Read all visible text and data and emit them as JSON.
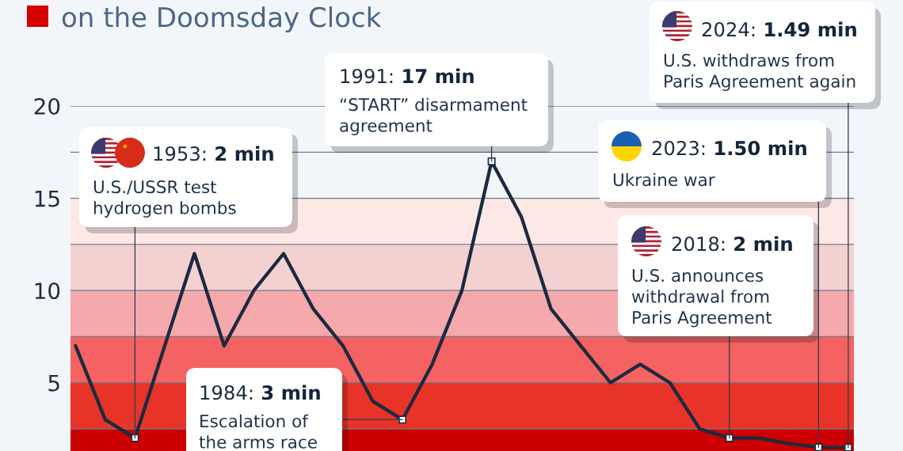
{
  "chart_data": {
    "type": "line",
    "title": "on the Doomsday Clock",
    "categories": [
      null,
      null,
      null,
      null,
      null,
      null,
      null,
      null,
      null,
      null,
      null,
      null,
      null,
      null,
      null,
      null,
      null,
      null,
      null,
      null,
      null,
      null,
      null,
      null,
      null,
      null,
      null
    ],
    "series": [
      {
        "color": "#1b2a3f",
        "values": [
          7,
          3,
          2,
          7,
          12,
          7,
          10,
          12,
          9,
          7,
          4,
          3,
          6,
          10,
          17,
          14,
          9,
          7,
          5,
          6,
          5,
          2.5,
          2,
          2,
          1.7,
          1.5,
          1.49
        ]
      }
    ],
    "ylim": [
      1.3,
      20
    ],
    "yticks": [
      {
        "value": 2.5,
        "label": null
      },
      5,
      {
        "value": 7.5,
        "label": null
      },
      10,
      {
        "value": 12.5,
        "label": null
      },
      15,
      {
        "value": 17.5,
        "label": null
      },
      20
    ],
    "grid": "y",
    "tick_labels": "y",
    "bands": [
      {
        "axis": "y",
        "from": 0,
        "to": 2.5,
        "color": "#cc0000"
      },
      {
        "axis": "y",
        "from": 2.5,
        "to": 5,
        "color": "#e83428"
      },
      {
        "axis": "y",
        "from": 5,
        "to": 7.5,
        "color": "#f46262"
      },
      {
        "axis": "y",
        "from": 7.5,
        "to": 10,
        "color": "#f5a9ac"
      },
      {
        "axis": "y",
        "from": 10,
        "to": 12.5,
        "color": "#f4d1d1"
      },
      {
        "axis": "y",
        "from": 12.5,
        "to": 15,
        "color": "#fde8e6"
      }
    ],
    "annotations": [
      "1953: 2 min\nU.S./USSR test\nhydrogen bombs",
      "1984: 3 min\nEscalation of\nthe arms race",
      "1991: 17 min\n“START” disarmament\nagreement",
      "2018: 2 min\nU.S. announces\nwithdrawal from\nParis Agreement",
      "2023: 1.50 min\nUkraine war",
      "2024: 1.49 min\nU.S. withdraws from\nParis Agreement again"
    ]
  }
}
